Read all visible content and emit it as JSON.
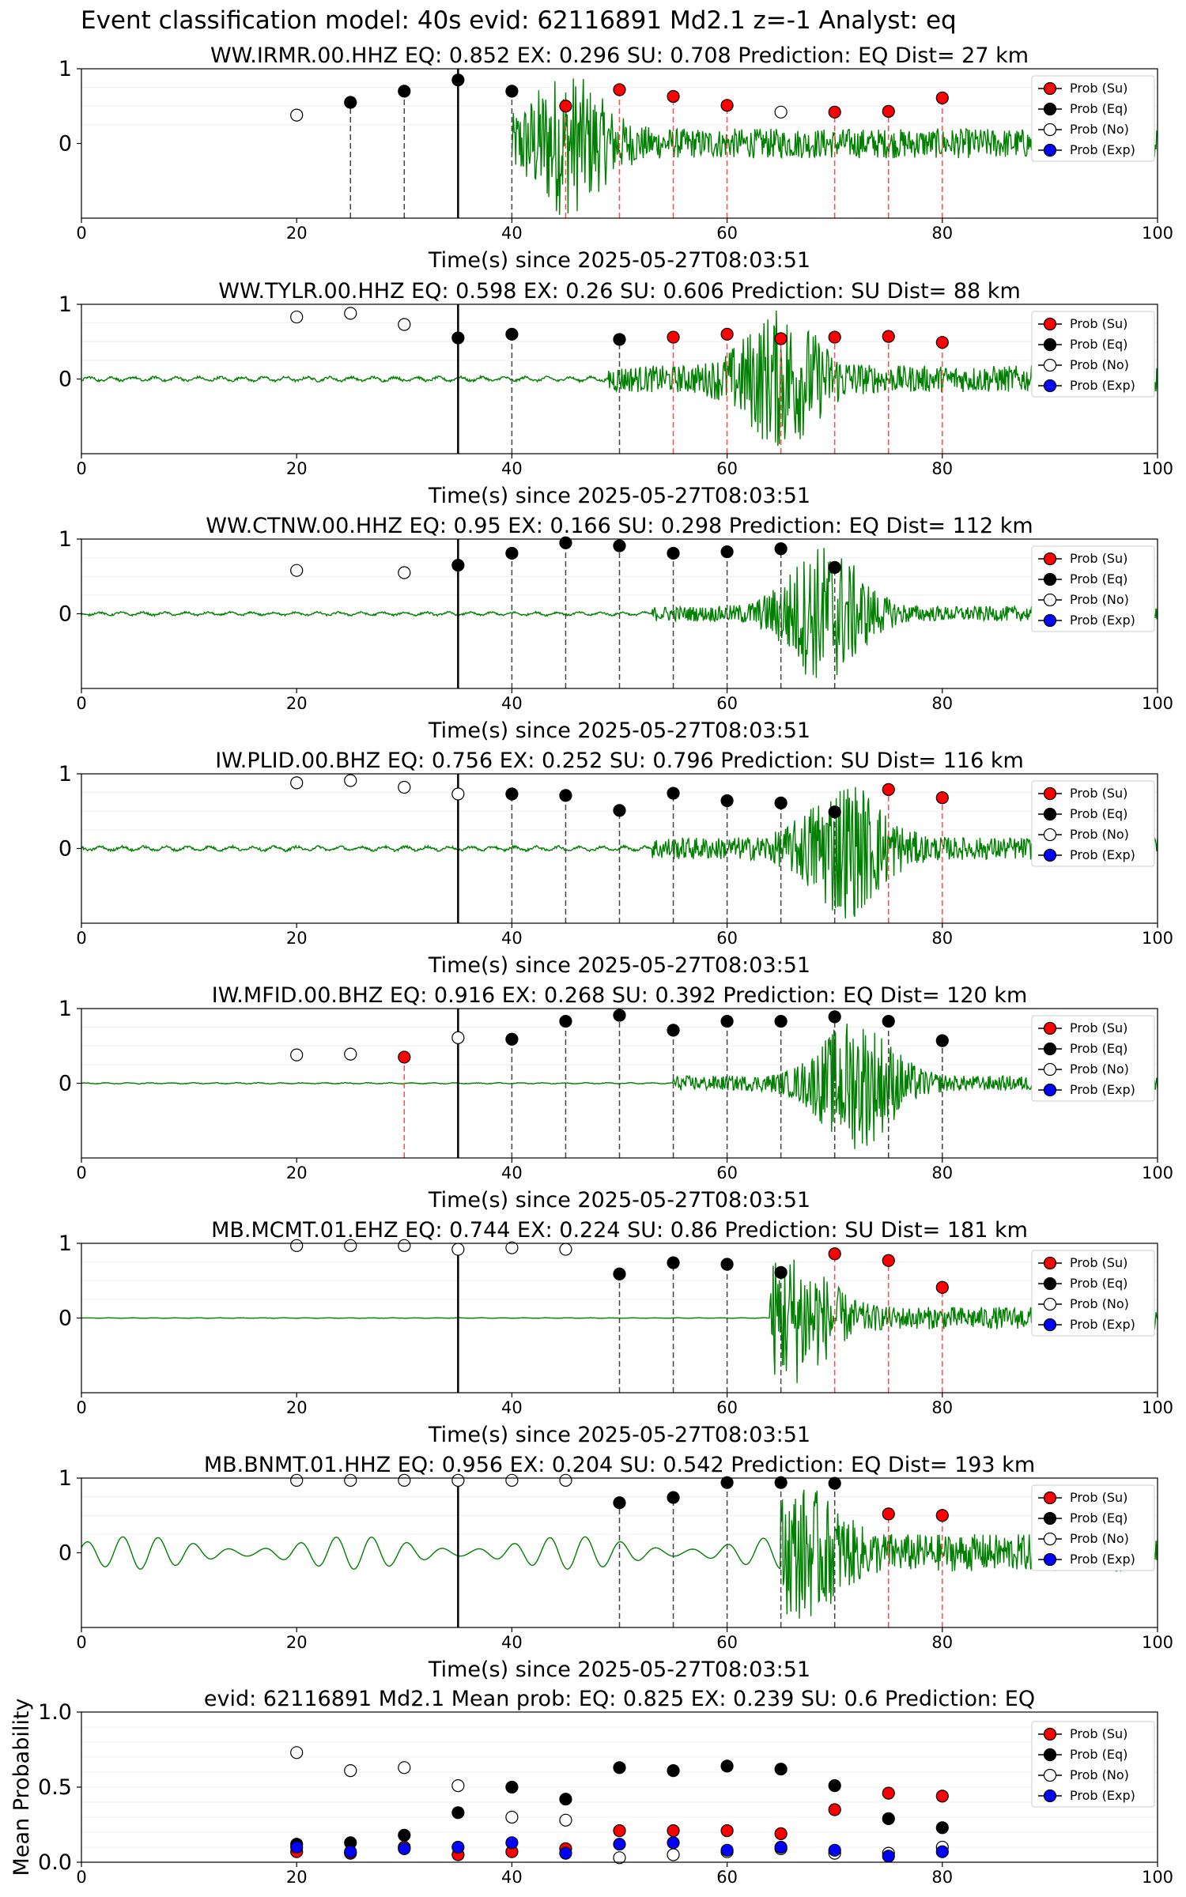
{
  "suptitle": "Event classification model: 40s evid: 62116891 Md2.1 z=-1 Analyst: eq",
  "colors": {
    "waveform": "#008000",
    "su": "#ff0000",
    "eq": "#000000",
    "no": "#ffffff",
    "exp": "#0000ff",
    "su_line": "#ff4d4d",
    "eq_line": "#444444",
    "pick": "#000000"
  },
  "legend": [
    "Prob (Su)",
    "Prob (Eq)",
    "Prob (No)",
    "Prob (Exp)"
  ],
  "chart_data": [
    {
      "type": "scatter",
      "title": "WW.IRMR.00.HHZ   EQ: 0.852  EX: 0.296  SU: 0.708   Prediction: EQ    Dist= 27 km",
      "xlabel": "Time(s) since 2025-05-27T08:03:51",
      "ylabel": "",
      "xlim": [
        0,
        100
      ],
      "ylim": [
        -1,
        1
      ],
      "yticks": [
        0,
        1
      ],
      "xticks": [
        0,
        20,
        40,
        60,
        80,
        100
      ],
      "pick_time": 35,
      "waveform_start": 40,
      "wave": {
        "pre": 0.03,
        "post": 0.2,
        "peak_t": 45,
        "peak_amp": 0.98,
        "onset": 40
      },
      "points": [
        {
          "x": 20,
          "y": 0.38,
          "class": "no"
        },
        {
          "x": 25,
          "y": 0.55,
          "class": "eq"
        },
        {
          "x": 30,
          "y": 0.7,
          "class": "eq"
        },
        {
          "x": 35,
          "y": 0.85,
          "class": "eq"
        },
        {
          "x": 40,
          "y": 0.7,
          "class": "eq"
        },
        {
          "x": 45,
          "y": 0.5,
          "class": "su"
        },
        {
          "x": 50,
          "y": 0.72,
          "class": "su"
        },
        {
          "x": 55,
          "y": 0.63,
          "class": "su"
        },
        {
          "x": 60,
          "y": 0.51,
          "class": "su"
        },
        {
          "x": 65,
          "y": 0.42,
          "class": "no"
        },
        {
          "x": 70,
          "y": 0.42,
          "class": "su"
        },
        {
          "x": 75,
          "y": 0.43,
          "class": "su"
        },
        {
          "x": 80,
          "y": 0.61,
          "class": "su"
        }
      ]
    },
    {
      "type": "scatter",
      "title": "WW.TYLR.00.HHZ   EQ: 0.598  EX: 0.26  SU: 0.606   Prediction: SU    Dist= 88 km",
      "xlabel": "Time(s) since 2025-05-27T08:03:51",
      "ylabel": "",
      "xlim": [
        0,
        100
      ],
      "ylim": [
        -1,
        1
      ],
      "yticks": [
        0,
        1
      ],
      "xticks": [
        0,
        20,
        40,
        60,
        80,
        100
      ],
      "pick_time": 35,
      "wave": {
        "pre": 0.04,
        "post": 0.18,
        "peak_t": 65,
        "peak_amp": 0.95,
        "onset": 49
      },
      "points": [
        {
          "x": 20,
          "y": 0.83,
          "class": "no"
        },
        {
          "x": 25,
          "y": 0.88,
          "class": "no"
        },
        {
          "x": 30,
          "y": 0.73,
          "class": "no"
        },
        {
          "x": 35,
          "y": 0.55,
          "class": "eq"
        },
        {
          "x": 40,
          "y": 0.6,
          "class": "eq"
        },
        {
          "x": 50,
          "y": 0.53,
          "class": "eq"
        },
        {
          "x": 55,
          "y": 0.56,
          "class": "su"
        },
        {
          "x": 60,
          "y": 0.6,
          "class": "su"
        },
        {
          "x": 65,
          "y": 0.54,
          "class": "su"
        },
        {
          "x": 70,
          "y": 0.56,
          "class": "su"
        },
        {
          "x": 75,
          "y": 0.57,
          "class": "su"
        },
        {
          "x": 80,
          "y": 0.49,
          "class": "su"
        }
      ]
    },
    {
      "type": "scatter",
      "title": "WW.CTNW.00.HHZ   EQ: 0.95  EX: 0.166  SU: 0.298   Prediction: EQ    Dist= 112 km",
      "xlabel": "Time(s) since 2025-05-27T08:03:51",
      "ylabel": "",
      "xlim": [
        0,
        100
      ],
      "ylim": [
        -1,
        1
      ],
      "yticks": [
        0,
        1
      ],
      "xticks": [
        0,
        20,
        40,
        60,
        80,
        100
      ],
      "pick_time": 35,
      "wave": {
        "pre": 0.03,
        "post": 0.1,
        "peak_t": 69,
        "peak_amp": 0.95,
        "onset": 53
      },
      "points": [
        {
          "x": 20,
          "y": 0.58,
          "class": "no"
        },
        {
          "x": 30,
          "y": 0.55,
          "class": "no"
        },
        {
          "x": 35,
          "y": 0.65,
          "class": "eq"
        },
        {
          "x": 40,
          "y": 0.81,
          "class": "eq"
        },
        {
          "x": 45,
          "y": 0.95,
          "class": "eq"
        },
        {
          "x": 50,
          "y": 0.91,
          "class": "eq"
        },
        {
          "x": 55,
          "y": 0.81,
          "class": "eq"
        },
        {
          "x": 60,
          "y": 0.83,
          "class": "eq"
        },
        {
          "x": 65,
          "y": 0.87,
          "class": "eq"
        },
        {
          "x": 70,
          "y": 0.62,
          "class": "eq"
        }
      ]
    },
    {
      "type": "scatter",
      "title": "IW.PLID.00.BHZ   EQ: 0.756  EX: 0.252  SU: 0.796   Prediction: SU    Dist= 116 km",
      "xlabel": "Time(s) since 2025-05-27T08:03:51",
      "ylabel": "",
      "xlim": [
        0,
        100
      ],
      "ylim": [
        -1,
        1
      ],
      "yticks": [
        0,
        1
      ],
      "xticks": [
        0,
        20,
        40,
        60,
        80,
        100
      ],
      "pick_time": 35,
      "wave": {
        "pre": 0.04,
        "post": 0.15,
        "peak_t": 71,
        "peak_amp": 0.95,
        "onset": 53
      },
      "points": [
        {
          "x": 20,
          "y": 0.88,
          "class": "no"
        },
        {
          "x": 25,
          "y": 0.91,
          "class": "no"
        },
        {
          "x": 30,
          "y": 0.82,
          "class": "no"
        },
        {
          "x": 35,
          "y": 0.73,
          "class": "no"
        },
        {
          "x": 40,
          "y": 0.73,
          "class": "eq"
        },
        {
          "x": 45,
          "y": 0.71,
          "class": "eq"
        },
        {
          "x": 50,
          "y": 0.51,
          "class": "eq"
        },
        {
          "x": 55,
          "y": 0.74,
          "class": "eq"
        },
        {
          "x": 60,
          "y": 0.64,
          "class": "eq"
        },
        {
          "x": 65,
          "y": 0.61,
          "class": "eq"
        },
        {
          "x": 70,
          "y": 0.49,
          "class": "eq"
        },
        {
          "x": 75,
          "y": 0.79,
          "class": "su"
        },
        {
          "x": 80,
          "y": 0.68,
          "class": "su"
        }
      ]
    },
    {
      "type": "scatter",
      "title": "IW.MFID.00.BHZ   EQ: 0.916  EX: 0.268  SU: 0.392   Prediction: EQ    Dist= 120 km",
      "xlabel": "Time(s) since 2025-05-27T08:03:51",
      "ylabel": "",
      "xlim": [
        0,
        100
      ],
      "ylim": [
        -1,
        1
      ],
      "yticks": [
        0,
        1
      ],
      "xticks": [
        0,
        20,
        40,
        60,
        80,
        100
      ],
      "pick_time": 35,
      "wave": {
        "pre": 0.01,
        "post": 0.1,
        "peak_t": 72,
        "peak_amp": 0.9,
        "onset": 55
      },
      "points": [
        {
          "x": 20,
          "y": 0.38,
          "class": "no"
        },
        {
          "x": 25,
          "y": 0.39,
          "class": "no"
        },
        {
          "x": 30,
          "y": 0.35,
          "class": "su"
        },
        {
          "x": 35,
          "y": 0.61,
          "class": "no"
        },
        {
          "x": 40,
          "y": 0.59,
          "class": "eq"
        },
        {
          "x": 45,
          "y": 0.83,
          "class": "eq"
        },
        {
          "x": 50,
          "y": 0.91,
          "class": "eq"
        },
        {
          "x": 55,
          "y": 0.71,
          "class": "eq"
        },
        {
          "x": 60,
          "y": 0.83,
          "class": "eq"
        },
        {
          "x": 65,
          "y": 0.83,
          "class": "eq"
        },
        {
          "x": 70,
          "y": 0.89,
          "class": "eq"
        },
        {
          "x": 75,
          "y": 0.83,
          "class": "eq"
        },
        {
          "x": 80,
          "y": 0.57,
          "class": "eq"
        }
      ]
    },
    {
      "type": "scatter",
      "title": "MB.MCMT.01.EHZ   EQ: 0.744  EX: 0.224  SU: 0.86   Prediction: SU    Dist= 181 km",
      "xlabel": "Time(s) since 2025-05-27T08:03:51",
      "ylabel": "",
      "xlim": [
        0,
        100
      ],
      "ylim": [
        -1,
        1
      ],
      "yticks": [
        0,
        1
      ],
      "xticks": [
        0,
        20,
        40,
        60,
        80,
        100
      ],
      "pick_time": 35,
      "wave": {
        "pre": 0.005,
        "post": 0.15,
        "peak_t": 66,
        "peak_amp": 0.9,
        "onset": 64
      },
      "points": [
        {
          "x": 20,
          "y": 0.97,
          "class": "no"
        },
        {
          "x": 25,
          "y": 0.97,
          "class": "no"
        },
        {
          "x": 30,
          "y": 0.97,
          "class": "no"
        },
        {
          "x": 35,
          "y": 0.92,
          "class": "no"
        },
        {
          "x": 40,
          "y": 0.94,
          "class": "no"
        },
        {
          "x": 45,
          "y": 0.92,
          "class": "no"
        },
        {
          "x": 50,
          "y": 0.59,
          "class": "eq"
        },
        {
          "x": 55,
          "y": 0.74,
          "class": "eq"
        },
        {
          "x": 60,
          "y": 0.72,
          "class": "eq"
        },
        {
          "x": 65,
          "y": 0.61,
          "class": "eq"
        },
        {
          "x": 70,
          "y": 0.86,
          "class": "su"
        },
        {
          "x": 75,
          "y": 0.77,
          "class": "su"
        },
        {
          "x": 80,
          "y": 0.41,
          "class": "su"
        }
      ]
    },
    {
      "type": "scatter",
      "title": "MB.BNMT.01.HHZ   EQ: 0.956  EX: 0.204  SU: 0.542   Prediction: EQ    Dist= 193 km",
      "xlabel": "Time(s) since 2025-05-27T08:03:51",
      "ylabel": "",
      "xlim": [
        0,
        100
      ],
      "ylim": [
        -1,
        1
      ],
      "yticks": [
        0,
        1
      ],
      "xticks": [
        0,
        20,
        40,
        60,
        80,
        100
      ],
      "pick_time": 35,
      "wave": {
        "pre": 0.22,
        "post": 0.25,
        "peak_t": 67,
        "peak_amp": 0.9,
        "onset": 65,
        "lowfreq": true
      },
      "points": [
        {
          "x": 20,
          "y": 0.97,
          "class": "no"
        },
        {
          "x": 25,
          "y": 0.97,
          "class": "no"
        },
        {
          "x": 30,
          "y": 0.97,
          "class": "no"
        },
        {
          "x": 35,
          "y": 0.97,
          "class": "no"
        },
        {
          "x": 40,
          "y": 0.97,
          "class": "no"
        },
        {
          "x": 45,
          "y": 0.97,
          "class": "no"
        },
        {
          "x": 50,
          "y": 0.67,
          "class": "eq"
        },
        {
          "x": 55,
          "y": 0.74,
          "class": "eq"
        },
        {
          "x": 60,
          "y": 0.94,
          "class": "eq"
        },
        {
          "x": 65,
          "y": 0.94,
          "class": "eq"
        },
        {
          "x": 70,
          "y": 0.93,
          "class": "eq"
        },
        {
          "x": 75,
          "y": 0.52,
          "class": "su"
        },
        {
          "x": 80,
          "y": 0.5,
          "class": "su"
        }
      ]
    },
    {
      "type": "scatter",
      "title": "evid: 62116891  Md2.1   Mean prob:   EQ: 0.825  EX: 0.239  SU: 0.6   Prediction: EQ",
      "xlabel": "",
      "ylabel": "Mean Probability",
      "xlim": [
        0,
        100
      ],
      "ylim": [
        0,
        1
      ],
      "yticks": [
        0.0,
        0.5,
        1.0
      ],
      "ytick_labels": [
        "0.0",
        "0.5",
        "1.0"
      ],
      "xticks": [
        0,
        20,
        40,
        60,
        80,
        100
      ],
      "x": [
        20,
        25,
        30,
        35,
        40,
        45,
        50,
        55,
        60,
        65,
        70,
        75,
        80
      ],
      "series": [
        {
          "name": "Prob (Su)",
          "class": "su",
          "values": [
            0.07,
            0.06,
            0.1,
            0.05,
            0.07,
            0.09,
            0.21,
            0.21,
            0.21,
            0.19,
            0.35,
            0.46,
            0.44
          ]
        },
        {
          "name": "Prob (Eq)",
          "class": "eq",
          "values": [
            0.12,
            0.13,
            0.18,
            0.33,
            0.5,
            0.42,
            0.63,
            0.61,
            0.64,
            0.62,
            0.51,
            0.29,
            0.23
          ]
        },
        {
          "name": "Prob (No)",
          "class": "no",
          "values": [
            0.73,
            0.61,
            0.63,
            0.51,
            0.3,
            0.28,
            0.03,
            0.05,
            0.07,
            0.09,
            0.06,
            0.06,
            0.1
          ]
        },
        {
          "name": "Prob (Exp)",
          "class": "exp",
          "values": [
            0.1,
            0.07,
            0.09,
            0.1,
            0.13,
            0.06,
            0.12,
            0.13,
            0.08,
            0.1,
            0.08,
            0.04,
            0.07
          ]
        }
      ]
    }
  ]
}
